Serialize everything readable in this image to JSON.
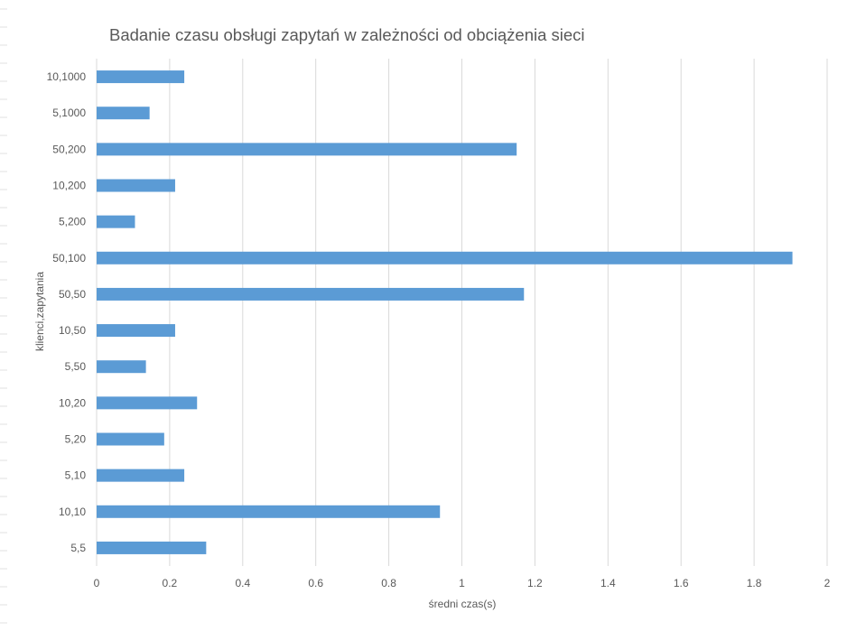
{
  "chart_data": {
    "type": "bar",
    "orientation": "horizontal",
    "title": "Badanie czasu obsługi zapytań w zależności od obciążenia sieci",
    "xlabel": "średni czas(s)",
    "ylabel": "klienci,zapytania",
    "categories": [
      "5,5",
      "10,10",
      "5,10",
      "5,20",
      "10,20",
      "5,50",
      "10,50",
      "50,50",
      "50,100",
      "5,200",
      "10,200",
      "50,200",
      "5,1000",
      "10,1000"
    ],
    "values": [
      0.3,
      0.94,
      0.24,
      0.185,
      0.275,
      0.135,
      0.215,
      1.17,
      1.905,
      0.105,
      0.215,
      1.15,
      0.145,
      0.24
    ],
    "xlim": [
      0,
      2
    ],
    "xticks": [
      "0",
      "0.2",
      "0.4",
      "0.6",
      "0.8",
      "1",
      "1.2",
      "1.4",
      "1.6",
      "1.8",
      "2"
    ],
    "grid": true,
    "bar_color": "#5b9bd5",
    "grid_color": "#d9d9d9",
    "text_color": "#595959"
  }
}
